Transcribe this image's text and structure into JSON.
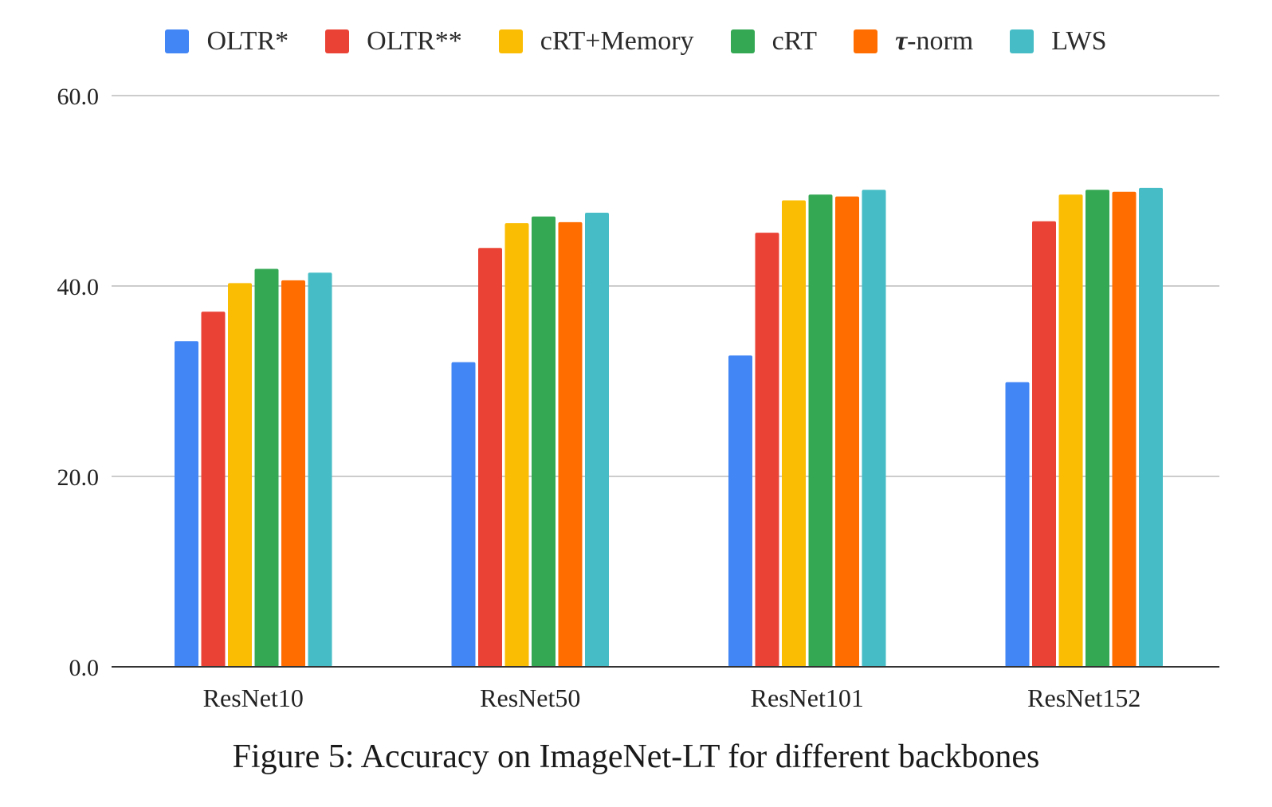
{
  "chart_data": {
    "type": "bar",
    "categories": [
      "ResNet10",
      "ResNet50",
      "ResNet101",
      "ResNet152"
    ],
    "series": [
      {
        "name": "OLTR*",
        "color": "#4285F4",
        "values": [
          34.2,
          32.0,
          32.7,
          29.9
        ]
      },
      {
        "name": "OLTR**",
        "color": "#EA4335",
        "values": [
          37.3,
          44.0,
          45.6,
          46.8
        ]
      },
      {
        "name": "cRT+Memory",
        "color": "#FBBC04",
        "values": [
          40.3,
          46.6,
          49.0,
          49.6
        ]
      },
      {
        "name": "cRT",
        "color": "#34A853",
        "values": [
          41.8,
          47.3,
          49.6,
          50.1
        ]
      },
      {
        "name": "τ-norm",
        "color": "#FF6D01",
        "values": [
          40.6,
          46.7,
          49.4,
          49.9
        ]
      },
      {
        "name": "LWS",
        "color": "#46BDC6",
        "values": [
          41.4,
          47.7,
          50.1,
          50.3
        ]
      }
    ],
    "yticks": [
      "0.0",
      "20.0",
      "40.0",
      "60.0"
    ],
    "ylim": [
      0,
      60
    ],
    "grid": true,
    "legend_position": "top"
  },
  "caption": "Figure 5: Accuracy on ImageNet-LT for different backbones"
}
